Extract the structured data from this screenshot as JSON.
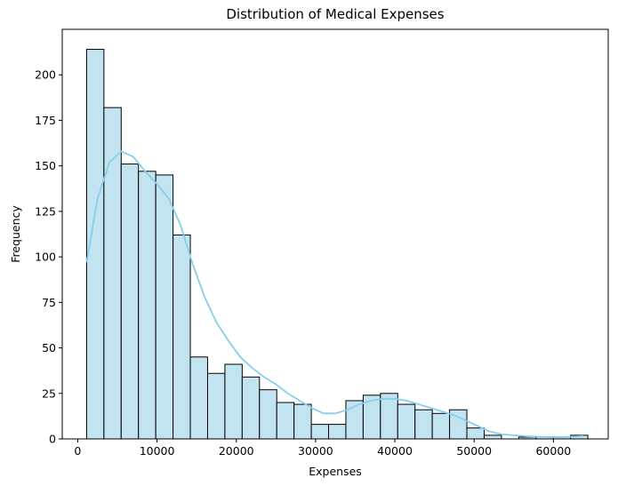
{
  "chart_data": {
    "type": "bar",
    "title": "Distribution of Medical Expenses",
    "xlabel": "Expenses",
    "ylabel": "Frequency",
    "xlim": [
      -1953,
      66912
    ],
    "ylim": [
      0,
      225
    ],
    "grid": false,
    "legend": "none",
    "bin_start": 1122,
    "bin_width": 2180,
    "counts": [
      214,
      182,
      151,
      147,
      145,
      112,
      45,
      36,
      41,
      34,
      27,
      20,
      19,
      8,
      8,
      21,
      24,
      25,
      19,
      16,
      14,
      16,
      6,
      2,
      0,
      1,
      1,
      1,
      2
    ],
    "x_ticks": [
      0,
      10000,
      20000,
      30000,
      40000,
      50000,
      60000
    ],
    "x_tick_labels": [
      "0",
      "10000",
      "20000",
      "30000",
      "40000",
      "50000",
      "60000"
    ],
    "y_ticks": [
      0,
      25,
      50,
      75,
      100,
      125,
      150,
      175,
      200
    ],
    "y_tick_labels": [
      "0",
      "25",
      "50",
      "75",
      "100",
      "125",
      "150",
      "175",
      "200"
    ],
    "kde": {
      "x": [
        1122,
        2500,
        4000,
        5500,
        7000,
        8500,
        10000,
        11500,
        13000,
        14500,
        16000,
        17500,
        19000,
        20500,
        22000,
        23500,
        25000,
        26500,
        28000,
        29500,
        31000,
        32500,
        34000,
        35500,
        37000,
        38500,
        40000,
        41500,
        43000,
        44500,
        46000,
        47500,
        49000,
        50500,
        52000,
        53500,
        55000,
        56500,
        58000,
        59500,
        61000,
        62500,
        63770
      ],
      "y": [
        97,
        132,
        152,
        158,
        155,
        147,
        140,
        132,
        117,
        96,
        78,
        64,
        54,
        45,
        39,
        34,
        30,
        25,
        21,
        17,
        14,
        14,
        16,
        19,
        21,
        22,
        22,
        21,
        19,
        17,
        15,
        13,
        10,
        7,
        4,
        2.5,
        2,
        1.5,
        1.2,
        1,
        1,
        1.2,
        1.6
      ]
    },
    "colors": {
      "bar_fill": "#c2e4f1",
      "bar_edge": "#000000",
      "kde_line": "#87ceeb"
    }
  }
}
